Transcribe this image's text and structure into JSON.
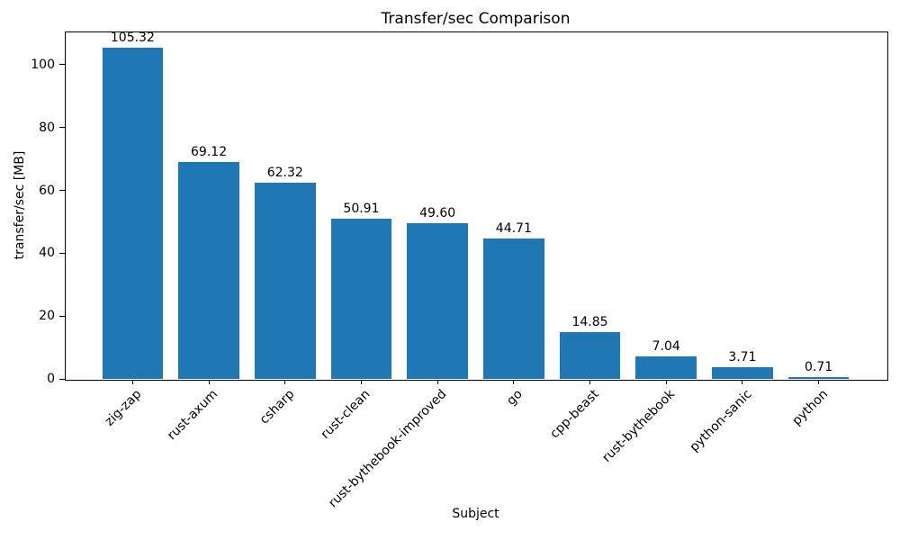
{
  "figure": {
    "background": "#ffffff",
    "text_color": "#000000"
  },
  "chart_data": {
    "type": "bar",
    "title": "Transfer/sec Comparison",
    "xlabel": "Subject",
    "ylabel": "transfer/sec [MB]",
    "categories": [
      "zig-zap",
      "rust-axum",
      "csharp",
      "rust-clean",
      "rust-bythebook-improved",
      "go",
      "cpp-beast",
      "rust-bythebook",
      "python-sanic",
      "python"
    ],
    "values": [
      105.32,
      69.12,
      62.32,
      50.91,
      49.6,
      44.71,
      14.85,
      7.04,
      3.71,
      0.71
    ],
    "value_labels": [
      "105.32",
      "69.12",
      "62.32",
      "50.91",
      "49.60",
      "44.71",
      "14.85",
      "7.04",
      "3.71",
      "0.71"
    ],
    "bar_color": "#1f77b4",
    "bar_width": 0.8,
    "ylim": [
      0,
      110.59
    ],
    "yticks": [
      0,
      20,
      40,
      60,
      80,
      100
    ],
    "x_tick_rotation": 45,
    "grid": false,
    "legend": null
  }
}
